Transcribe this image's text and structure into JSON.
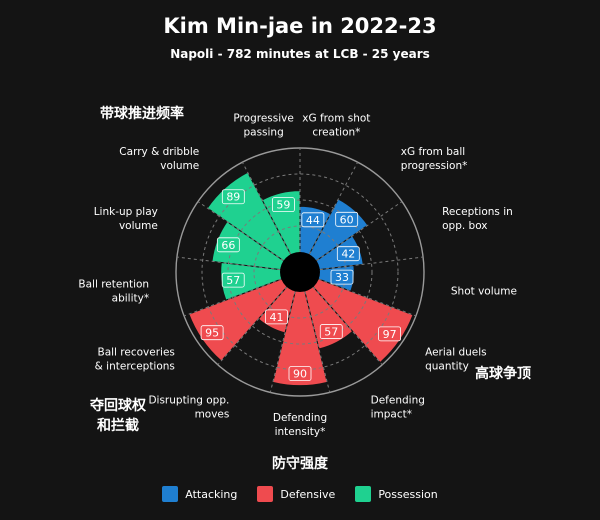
{
  "header": {
    "title": "Kim Min-jae in 2022-23",
    "subtitle": "Napoli - 782 minutes at LCB - 25 years"
  },
  "colors": {
    "background": "#141414",
    "Attacking": "#1f7fd1",
    "Defensive": "#ef4b4f",
    "Possession": "#1fd190",
    "grid": "#8a8a8a"
  },
  "annotations": {
    "carry": "带球推进频率",
    "aerial": "高球争顶",
    "recoveries_line1": "夺回球权",
    "recoveries_line2": "和拦截",
    "intensity": "防守强度"
  },
  "legend": [
    {
      "label": "Attacking",
      "color": "#1f7fd1"
    },
    {
      "label": "Defensive",
      "color": "#ef4b4f"
    },
    {
      "label": "Possession",
      "color": "#1fd190"
    }
  ],
  "chart_data": {
    "type": "radar-bar",
    "rmax": 100,
    "rings": [
      25,
      50,
      75,
      100
    ],
    "grid": true,
    "start": "top",
    "direction": "clockwise",
    "metrics": [
      {
        "label": "xG from shot creation*",
        "value": 44,
        "category": "Attacking"
      },
      {
        "label": "xG from ball progression*",
        "value": 60,
        "category": "Attacking"
      },
      {
        "label": "Receptions in opp. box",
        "value": 42,
        "category": "Attacking"
      },
      {
        "label": "Shot volume",
        "value": 33,
        "category": "Attacking"
      },
      {
        "label": "Aerial duels quantity",
        "value": 97,
        "category": "Defensive"
      },
      {
        "label": "Defending impact*",
        "value": 57,
        "category": "Defensive"
      },
      {
        "label": "Defending intensity*",
        "value": 90,
        "category": "Defensive"
      },
      {
        "label": "Disrupting opp. moves",
        "value": 41,
        "category": "Defensive"
      },
      {
        "label": "Ball recoveries & interceptions",
        "value": 95,
        "category": "Defensive"
      },
      {
        "label": "Ball retention ability*",
        "value": 57,
        "category": "Possession"
      },
      {
        "label": "Link-up play volume",
        "value": 66,
        "category": "Possession"
      },
      {
        "label": "Carry & dribble volume",
        "value": 89,
        "category": "Possession"
      },
      {
        "label": "Progressive passing",
        "value": 59,
        "category": "Possession"
      }
    ]
  }
}
